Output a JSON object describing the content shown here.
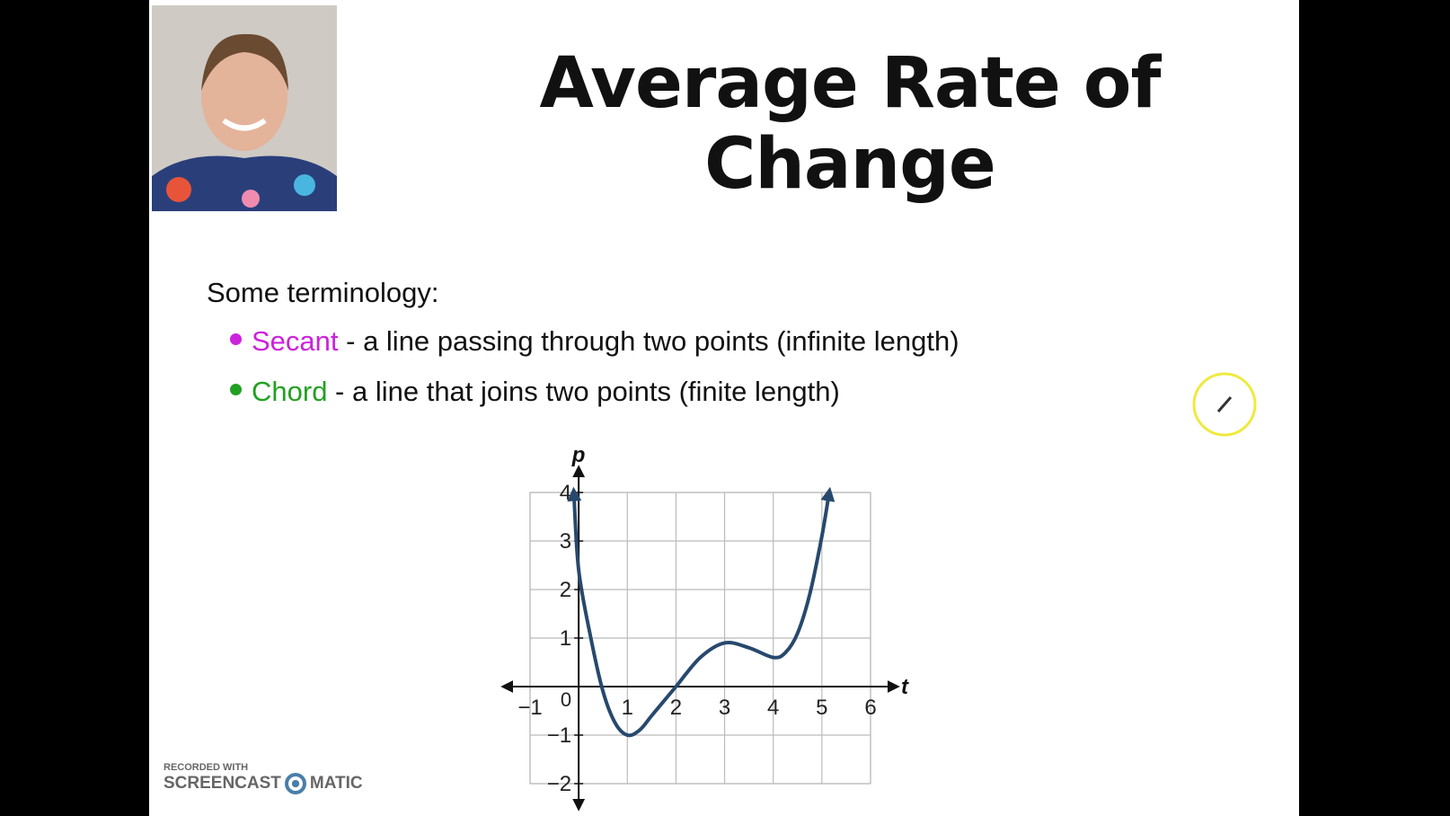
{
  "header": {
    "title": "Average Rate of Change"
  },
  "body": {
    "intro": "Some terminology:",
    "bullets": [
      {
        "term": "Secant",
        "color": "#cc22dd",
        "description": " - a line passing through two points (infinite length)"
      },
      {
        "term": "Chord",
        "color": "#22a022",
        "description": " - a line that joins two points (finite length)"
      }
    ]
  },
  "graph": {
    "x_label": "t",
    "y_label": "p",
    "origin_label": "0",
    "xlim": [
      -1,
      6
    ],
    "ylim": [
      -2,
      4
    ],
    "xticks": [
      {
        "value": -1,
        "label": "−1"
      },
      1,
      2,
      3,
      4,
      5,
      6
    ],
    "yticks": [
      {
        "value": -2,
        "label": "−2"
      },
      {
        "value": -1,
        "label": "−1"
      },
      1,
      2,
      3,
      4
    ],
    "curve": {
      "color": "#27496d",
      "x": [
        -0.1,
        0,
        0.25,
        0.5,
        0.75,
        1,
        1.25,
        1.5,
        1.75,
        2,
        2.5,
        3,
        3.5,
        4,
        4.25,
        4.5,
        4.75,
        5,
        5.15
      ],
      "y": [
        4,
        2.4,
        1.0,
        -0.1,
        -0.75,
        -1,
        -0.9,
        -0.6,
        -0.3,
        0,
        0.6,
        0.9,
        0.8,
        0.6,
        0.7,
        1.1,
        1.9,
        3.1,
        4
      ]
    }
  },
  "watermark": {
    "line1": "RECORDED WITH",
    "left": "SCREENCAST",
    "right": "MATIC"
  }
}
